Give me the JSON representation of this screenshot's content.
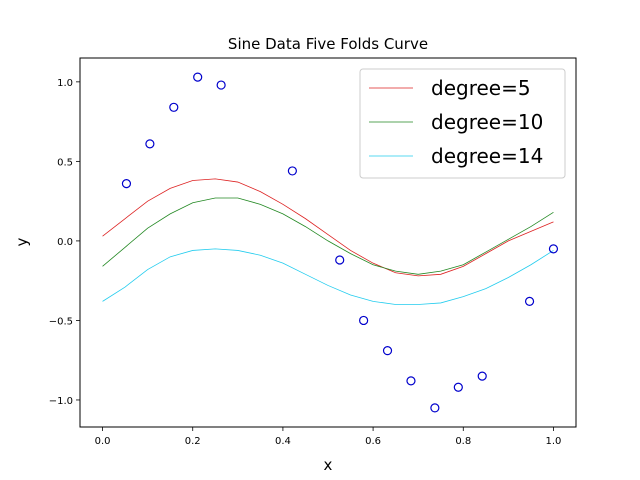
{
  "chart_data": {
    "type": "line",
    "title": "Sine Data Five Folds Curve",
    "xlabel": "x",
    "ylabel": "y",
    "xlim": [
      -0.05,
      1.05
    ],
    "ylim": [
      -1.17,
      1.15
    ],
    "xticks": [
      0.0,
      0.2,
      0.4,
      0.6,
      0.8,
      1.0
    ],
    "xtick_labels": [
      "0.0",
      "0.2",
      "0.4",
      "0.6",
      "0.8",
      "1.0"
    ],
    "yticks": [
      -1.0,
      -0.5,
      0.0,
      0.5,
      1.0
    ],
    "ytick_labels": [
      "−1.0",
      "−0.5",
      "0.0",
      "0.5",
      "1.0"
    ],
    "grid": false,
    "legend_position": "top-right",
    "scatter": {
      "color": "#0000cc",
      "x": [
        0.053,
        0.105,
        0.158,
        0.211,
        0.263,
        0.421,
        0.526,
        0.579,
        0.632,
        0.684,
        0.737,
        0.789,
        0.842,
        0.947,
        1.0
      ],
      "y": [
        0.36,
        0.61,
        0.84,
        1.03,
        0.98,
        0.44,
        -0.12,
        -0.5,
        -0.69,
        -0.88,
        -1.05,
        -0.92,
        -0.85,
        -0.38,
        -0.05
      ]
    },
    "series": [
      {
        "name": "degree=5",
        "color": "#dd2222",
        "x": [
          0.0,
          0.05,
          0.1,
          0.15,
          0.2,
          0.25,
          0.3,
          0.35,
          0.4,
          0.45,
          0.5,
          0.55,
          0.6,
          0.65,
          0.7,
          0.75,
          0.8,
          0.85,
          0.9,
          0.95,
          1.0
        ],
        "y": [
          0.03,
          0.14,
          0.25,
          0.33,
          0.38,
          0.39,
          0.37,
          0.31,
          0.23,
          0.14,
          0.04,
          -0.06,
          -0.14,
          -0.2,
          -0.22,
          -0.21,
          -0.16,
          -0.08,
          0.0,
          0.06,
          0.12
        ]
      },
      {
        "name": "degree=10",
        "color": "#228822",
        "x": [
          0.0,
          0.05,
          0.1,
          0.15,
          0.2,
          0.25,
          0.3,
          0.35,
          0.4,
          0.45,
          0.5,
          0.55,
          0.6,
          0.65,
          0.7,
          0.75,
          0.8,
          0.85,
          0.9,
          0.95,
          1.0
        ],
        "y": [
          -0.16,
          -0.04,
          0.08,
          0.17,
          0.24,
          0.27,
          0.27,
          0.23,
          0.17,
          0.09,
          0.0,
          -0.08,
          -0.15,
          -0.19,
          -0.21,
          -0.19,
          -0.15,
          -0.07,
          0.01,
          0.09,
          0.18
        ]
      },
      {
        "name": "degree=14",
        "color": "#22ccee",
        "x": [
          0.0,
          0.05,
          0.1,
          0.15,
          0.2,
          0.25,
          0.3,
          0.35,
          0.4,
          0.45,
          0.5,
          0.55,
          0.6,
          0.65,
          0.7,
          0.75,
          0.8,
          0.85,
          0.9,
          0.95,
          1.0
        ],
        "y": [
          -0.38,
          -0.29,
          -0.18,
          -0.1,
          -0.06,
          -0.05,
          -0.06,
          -0.09,
          -0.14,
          -0.21,
          -0.28,
          -0.34,
          -0.38,
          -0.4,
          -0.4,
          -0.39,
          -0.35,
          -0.3,
          -0.23,
          -0.15,
          -0.06
        ]
      }
    ]
  }
}
